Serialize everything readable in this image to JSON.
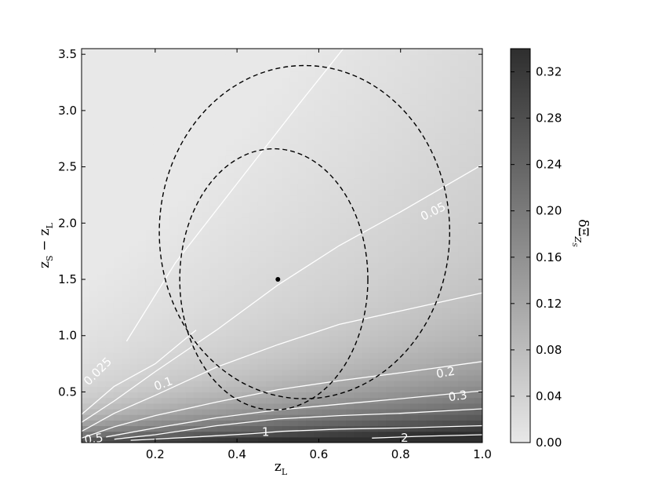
{
  "chart_data": {
    "type": "heatmap",
    "xlabel": "z_L",
    "ylabel": "z_S − z_L",
    "colorbar_label": "δΞ_{Z_S}",
    "xlim": [
      0.02,
      1.0
    ],
    "ylim": [
      0.05,
      3.55
    ],
    "x_ticks": [
      0.2,
      0.4,
      0.6,
      0.8,
      1.0
    ],
    "x_tick_labels": [
      "0.2",
      "0.4",
      "0.6",
      "0.8",
      "1.0"
    ],
    "y_ticks": [
      0.5,
      1.0,
      1.5,
      2.0,
      2.5,
      3.0,
      3.5
    ],
    "y_tick_labels": [
      "0.5",
      "1.0",
      "1.5",
      "2.0",
      "2.5",
      "3.0",
      "3.5"
    ],
    "colorbar_range": [
      0.0,
      0.34
    ],
    "colorbar_ticks": [
      0.0,
      0.04,
      0.08,
      0.12,
      0.16,
      0.2,
      0.24,
      0.28,
      0.32
    ],
    "colorbar_tick_labels": [
      "0.00",
      "0.04",
      "0.08",
      "0.12",
      "0.16",
      "0.20",
      "0.24",
      "0.28",
      "0.32"
    ],
    "colormap": {
      "low": "#e8e8e8",
      "high": "#2e2e2e"
    },
    "marker_point": {
      "x": 0.5,
      "y": 1.5,
      "color": "#000000"
    },
    "white_contours": [
      {
        "level_label": "0.025",
        "label_pos": [
          0.06,
          0.68
        ],
        "label_angle": -45,
        "points": [
          [
            0.02,
            0.3
          ],
          [
            0.1,
            0.55
          ],
          [
            0.2,
            0.75
          ],
          [
            0.25,
            0.9
          ],
          [
            0.3,
            1.05
          ]
        ]
      },
      {
        "level_label": "",
        "label_pos": null,
        "label_angle": 0,
        "points": [
          [
            0.13,
            0.95
          ],
          [
            0.25,
            1.65
          ],
          [
            0.4,
            2.35
          ],
          [
            0.55,
            3.05
          ],
          [
            0.66,
            3.55
          ]
        ]
      },
      {
        "level_label": "0.05",
        "label_pos": [
          0.88,
          2.1
        ],
        "label_angle": -26,
        "points": [
          [
            0.02,
            0.23
          ],
          [
            0.1,
            0.42
          ],
          [
            0.2,
            0.68
          ],
          [
            0.35,
            1.05
          ],
          [
            0.5,
            1.45
          ],
          [
            0.65,
            1.8
          ],
          [
            0.8,
            2.1
          ],
          [
            1.0,
            2.52
          ]
        ]
      },
      {
        "level_label": "0.1",
        "label_pos": [
          0.22,
          0.57
        ],
        "label_angle": -20,
        "points": [
          [
            0.02,
            0.15
          ],
          [
            0.1,
            0.31
          ],
          [
            0.2,
            0.47
          ],
          [
            0.35,
            0.72
          ],
          [
            0.5,
            0.92
          ],
          [
            0.65,
            1.1
          ],
          [
            0.8,
            1.22
          ],
          [
            1.0,
            1.38
          ]
        ]
      },
      {
        "level_label": "0.2",
        "label_pos": [
          0.91,
          0.67
        ],
        "label_angle": -10,
        "points": [
          [
            0.02,
            0.09
          ],
          [
            0.1,
            0.19
          ],
          [
            0.2,
            0.29
          ],
          [
            0.35,
            0.41
          ],
          [
            0.5,
            0.52
          ],
          [
            0.65,
            0.6
          ],
          [
            0.8,
            0.67
          ],
          [
            1.0,
            0.77
          ]
        ]
      },
      {
        "level_label": "0.3",
        "label_pos": [
          0.94,
          0.46
        ],
        "label_angle": -8,
        "points": [
          [
            0.08,
            0.1
          ],
          [
            0.2,
            0.18
          ],
          [
            0.35,
            0.27
          ],
          [
            0.5,
            0.34
          ],
          [
            0.65,
            0.39
          ],
          [
            0.8,
            0.44
          ],
          [
            1.0,
            0.51
          ]
        ]
      },
      {
        "level_label": "0.5",
        "label_pos": [
          0.05,
          0.08
        ],
        "label_angle": -8,
        "points": [
          [
            0.1,
            0.08
          ],
          [
            0.2,
            0.12
          ],
          [
            0.35,
            0.2
          ],
          [
            0.5,
            0.26
          ],
          [
            0.65,
            0.29
          ],
          [
            0.8,
            0.31
          ],
          [
            1.0,
            0.35
          ]
        ]
      },
      {
        "level_label": "1",
        "label_pos": [
          0.47,
          0.14
        ],
        "label_angle": 0,
        "points": [
          [
            0.14,
            0.07
          ],
          [
            0.3,
            0.1
          ],
          [
            0.44,
            0.13
          ],
          [
            0.51,
            0.15
          ],
          [
            0.65,
            0.17
          ],
          [
            0.8,
            0.18
          ],
          [
            1.0,
            0.2
          ]
        ]
      },
      {
        "level_label": "2",
        "label_pos": [
          0.81,
          0.09
        ],
        "label_angle": 0,
        "points": [
          [
            0.73,
            0.09
          ],
          [
            0.77,
            0.095
          ],
          [
            0.84,
            0.105
          ],
          [
            1.0,
            0.12
          ]
        ]
      }
    ],
    "dashed_contours": [
      {
        "cx": 0.565,
        "cy": 1.92,
        "rx": 0.355,
        "ry": 1.48,
        "clip_y_min": 0.05
      },
      {
        "cx": 0.49,
        "cy": 1.5,
        "rx": 0.23,
        "ry": 1.16,
        "clip_y_min": 0.05
      }
    ]
  }
}
